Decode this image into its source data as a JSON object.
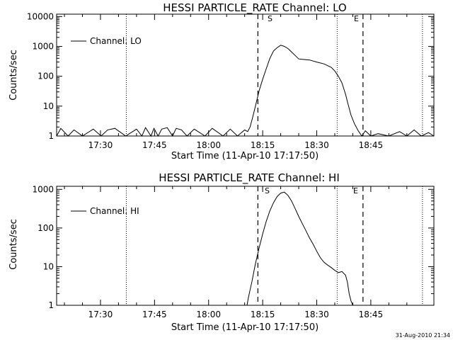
{
  "stamp": "31-Aug-2010 21:34",
  "chart_data": [
    {
      "type": "line",
      "title": "HESSI PARTICLE_RATE Channel: LO",
      "xlabel": "Start Time (11-Apr-10 17:17:50)",
      "ylabel": "Counts/sec",
      "yscale": "log",
      "ylim": [
        1,
        12000
      ],
      "xlim": [
        "17:17:50",
        "19:02:30"
      ],
      "xticks": [
        "17:30",
        "17:45",
        "18:00",
        "18:15",
        "18:30",
        "18:45"
      ],
      "yticks": [
        "1",
        "10",
        "100",
        "1000",
        "10000"
      ],
      "legend": {
        "label": "Channel: LO",
        "placement": "top-left"
      },
      "markers": {
        "start": "S",
        "end": "E"
      },
      "dotted_lines": [
        "17:37:10",
        "18:35:40",
        "18:59:20"
      ],
      "dashed_lines": [
        "18:13:40",
        "18:42:50"
      ],
      "series": [
        {
          "name": "Channel: LO",
          "x": [
            "17:17:50",
            "17:19:00",
            "17:21:00",
            "17:22:40",
            "17:25:00",
            "17:28:00",
            "17:30:10",
            "17:32:00",
            "17:34:00",
            "17:37:00",
            "17:40:00",
            "17:41:30",
            "17:42:30",
            "17:44:00",
            "17:44:50",
            "17:46:00",
            "17:47:00",
            "17:48:30",
            "17:50:00",
            "17:51:00",
            "17:52:30",
            "17:54:00",
            "17:56:00",
            "17:59:00",
            "18:01:00",
            "18:04:00",
            "18:06:00",
            "18:08:00",
            "18:10:00",
            "18:10:50",
            "18:11:30",
            "18:12:10",
            "18:13:00",
            "18:14:00",
            "18:15:00",
            "18:16:00",
            "18:17:00",
            "18:18:00",
            "18:19:00",
            "18:20:00",
            "18:21:00",
            "18:22:00",
            "18:23:00",
            "18:24:00",
            "18:25:00",
            "18:26:00",
            "18:27:00",
            "18:28:00",
            "18:30:00",
            "18:32:00",
            "18:34:00",
            "18:35:00",
            "18:36:00",
            "18:37:00",
            "18:38:00",
            "18:38:40",
            "18:39:30",
            "18:40:30",
            "18:41:30",
            "18:42:30",
            "18:43:30",
            "18:45:00",
            "18:47:00",
            "18:50:00",
            "18:53:00",
            "18:55:00",
            "18:57:00",
            "18:59:00",
            "19:01:00",
            "19:02:30"
          ],
          "y": [
            1,
            1.8,
            1,
            1.6,
            1,
            1.7,
            1,
            1.6,
            1.8,
            1,
            1.7,
            1,
            1.9,
            1,
            1.8,
            1,
            1.7,
            1.9,
            1,
            1.8,
            1.6,
            1,
            1.7,
            1,
            1.8,
            1,
            1.7,
            1,
            1.6,
            1.4,
            2,
            4,
            10,
            32,
            80,
            180,
            400,
            700,
            900,
            1100,
            1000,
            850,
            650,
            500,
            380,
            370,
            360,
            350,
            300,
            260,
            200,
            150,
            100,
            60,
            25,
            12,
            5,
            2.5,
            1.5,
            1,
            1.5,
            1,
            1.2,
            1,
            1.4,
            1,
            1.6,
            1,
            1.3,
            1
          ]
        }
      ]
    },
    {
      "type": "line",
      "title": "HESSI PARTICLE_RATE Channel: HI",
      "xlabel": "Start Time (11-Apr-10 17:17:50)",
      "ylabel": "Counts/sec",
      "yscale": "log",
      "ylim": [
        1,
        1200
      ],
      "xlim": [
        "17:17:50",
        "19:02:30"
      ],
      "xticks": [
        "17:30",
        "17:45",
        "18:00",
        "18:15",
        "18:30",
        "18:45"
      ],
      "yticks": [
        "1",
        "10",
        "100",
        "1000"
      ],
      "legend": {
        "label": "Channel: HI",
        "placement": "top-left"
      },
      "markers": {
        "start": "S",
        "end": "E"
      },
      "dotted_lines": [
        "17:37:10",
        "18:35:40",
        "18:59:20"
      ],
      "dashed_lines": [
        "18:13:40",
        "18:42:50"
      ],
      "series": [
        {
          "name": "Channel: HI",
          "x": [
            "18:10:40",
            "18:11:00",
            "18:11:30",
            "18:12:00",
            "18:12:30",
            "18:13:00",
            "18:14:00",
            "18:15:00",
            "18:16:00",
            "18:17:00",
            "18:18:00",
            "18:19:00",
            "18:20:00",
            "18:21:00",
            "18:22:00",
            "18:23:00",
            "18:24:00",
            "18:25:00",
            "18:26:00",
            "18:27:00",
            "18:28:00",
            "18:29:00",
            "18:30:00",
            "18:31:00",
            "18:32:00",
            "18:33:00",
            "18:34:00",
            "18:35:00",
            "18:36:00",
            "18:37:00",
            "18:38:00",
            "18:38:30",
            "18:39:00",
            "18:39:30",
            "18:40:00"
          ],
          "y": [
            1,
            1.5,
            2.5,
            4,
            7,
            12,
            30,
            70,
            150,
            280,
            450,
            650,
            800,
            850,
            700,
            500,
            320,
            200,
            130,
            85,
            55,
            38,
            25,
            17,
            13,
            11,
            9.5,
            8,
            7,
            7.5,
            6,
            4,
            2,
            1.3,
            1
          ]
        }
      ]
    }
  ]
}
